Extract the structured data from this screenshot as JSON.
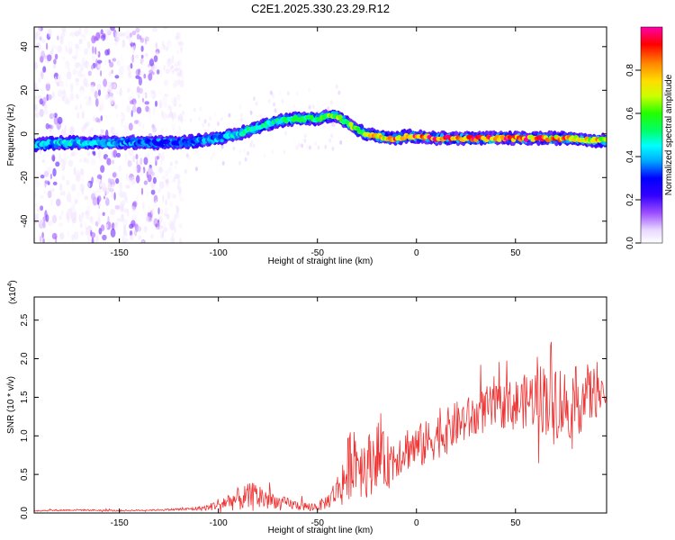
{
  "figure": {
    "title": "C2E1.2025.330.23.29.R12"
  },
  "chart_data": [
    {
      "type": "heatmap",
      "xlabel": "Height of straight line (km)",
      "ylabel": "Frequency (Hz)",
      "xlim": [
        -193,
        96
      ],
      "ylim": [
        -50,
        49
      ],
      "xticks": [
        "-150",
        "-100",
        "-50",
        "0",
        "50"
      ],
      "xtick_values": [
        -150,
        -100,
        -50,
        0,
        50
      ],
      "yticks": [
        "-40",
        "-20",
        "0",
        "20",
        "40"
      ],
      "ytick_values": [
        -40,
        -20,
        0,
        20,
        40
      ],
      "grid": false,
      "colorbar": {
        "label": "Normalized spectral amplitude",
        "range": [
          0,
          1
        ],
        "ticks": [
          "0.0",
          "0.2",
          "0.4",
          "0.6",
          "0.8"
        ],
        "tick_values": [
          0,
          0.2,
          0.4,
          0.6,
          0.8
        ],
        "colormap": [
          "#ffffff",
          "#f0e0ff",
          "#9b4dff",
          "#3300ff",
          "#0000ff",
          "#00aaff",
          "#00ffff",
          "#00ff66",
          "#22ff00",
          "#ccff00",
          "#ffdd00",
          "#ff8800",
          "#ff0000",
          "#ff00aa"
        ]
      },
      "ridge": {
        "x": [
          -193,
          -180,
          -160,
          -140,
          -120,
          -100,
          -90,
          -80,
          -70,
          -60,
          -50,
          -45,
          -40,
          -35,
          -30,
          -25,
          -20,
          -15,
          -10,
          -5,
          0,
          10,
          20,
          30,
          40,
          50,
          60,
          70,
          80,
          90,
          96
        ],
        "frequency": [
          -5,
          -4,
          -4,
          -4,
          -4,
          -2,
          0,
          3,
          6,
          7,
          7,
          8,
          8,
          5,
          2,
          0,
          -1,
          -2,
          -2,
          -1,
          -1,
          -2,
          -2,
          -2,
          -2,
          -2,
          -2,
          -2,
          -2,
          -3,
          -3
        ],
        "amplitude": [
          0.45,
          0.5,
          0.45,
          0.4,
          0.35,
          0.45,
          0.5,
          0.55,
          0.55,
          0.6,
          0.65,
          0.7,
          0.7,
          0.7,
          0.75,
          0.8,
          0.85,
          0.9,
          0.95,
          1.0,
          1.0,
          1.0,
          1.0,
          1.0,
          1.0,
          1.0,
          0.95,
          0.9,
          0.9,
          0.85,
          0.85
        ]
      }
    },
    {
      "type": "line",
      "xlabel": "Height of straight line (km)",
      "ylabel": "SNR (10 * v/v)",
      "y_multiplier": "(x10",
      "y_multiplier_exp": "4",
      "y_multiplier_close": ")",
      "xlim": [
        -193,
        96
      ],
      "ylim": [
        0,
        2.8
      ],
      "xticks": [
        "-150",
        "-100",
        "-50",
        "0",
        "50"
      ],
      "xtick_values": [
        -150,
        -100,
        -50,
        0,
        50
      ],
      "yticks": [
        "0.0",
        "0.5",
        "1.0",
        "1.5",
        "2.0",
        "2.5"
      ],
      "ytick_values": [
        0,
        0.5,
        1.0,
        1.5,
        2.0,
        2.5
      ],
      "grid": false,
      "color": "#ee3333",
      "series": [
        {
          "x": [
            -193,
            -170,
            -150,
            -130,
            -115,
            -105,
            -100,
            -95,
            -90,
            -85,
            -80,
            -75,
            -70,
            -65,
            -60,
            -55,
            -50,
            -45,
            -40,
            -35,
            -32,
            -30,
            -28,
            -25,
            -22,
            -20,
            -18,
            -15,
            -12,
            -10,
            -5,
            0,
            5,
            10,
            15,
            20,
            25,
            30,
            35,
            40,
            45,
            50,
            55,
            60,
            65,
            68,
            70,
            72,
            75,
            80,
            85,
            90,
            96
          ],
          "y": [
            0.03,
            0.04,
            0.03,
            0.04,
            0.05,
            0.07,
            0.12,
            0.15,
            0.18,
            0.2,
            0.22,
            0.18,
            0.15,
            0.12,
            0.1,
            0.08,
            0.08,
            0.15,
            0.3,
            0.5,
            0.8,
            0.7,
            0.65,
            0.6,
            0.7,
            0.8,
            0.7,
            0.65,
            0.7,
            0.75,
            0.85,
            0.85,
            0.9,
            1.0,
            1.05,
            1.15,
            1.2,
            1.25,
            1.35,
            1.35,
            1.4,
            1.4,
            1.45,
            1.5,
            1.5,
            1.6,
            1.5,
            1.45,
            1.4,
            1.45,
            1.5,
            1.55,
            1.5
          ],
          "noise_amplitude": [
            0.01,
            0.01,
            0.01,
            0.01,
            0.02,
            0.04,
            0.08,
            0.12,
            0.15,
            0.18,
            0.2,
            0.15,
            0.08,
            0.08,
            0.06,
            0.06,
            0.06,
            0.1,
            0.2,
            0.45,
            0.5,
            0.45,
            0.45,
            0.4,
            0.45,
            0.45,
            0.4,
            0.35,
            0.35,
            0.3,
            0.3,
            0.3,
            0.3,
            0.3,
            0.3,
            0.3,
            0.3,
            0.3,
            0.3,
            0.3,
            0.3,
            0.35,
            0.35,
            0.4,
            0.5,
            0.7,
            0.6,
            0.5,
            0.5,
            0.45,
            0.45,
            0.35,
            0.08
          ]
        }
      ]
    }
  ]
}
